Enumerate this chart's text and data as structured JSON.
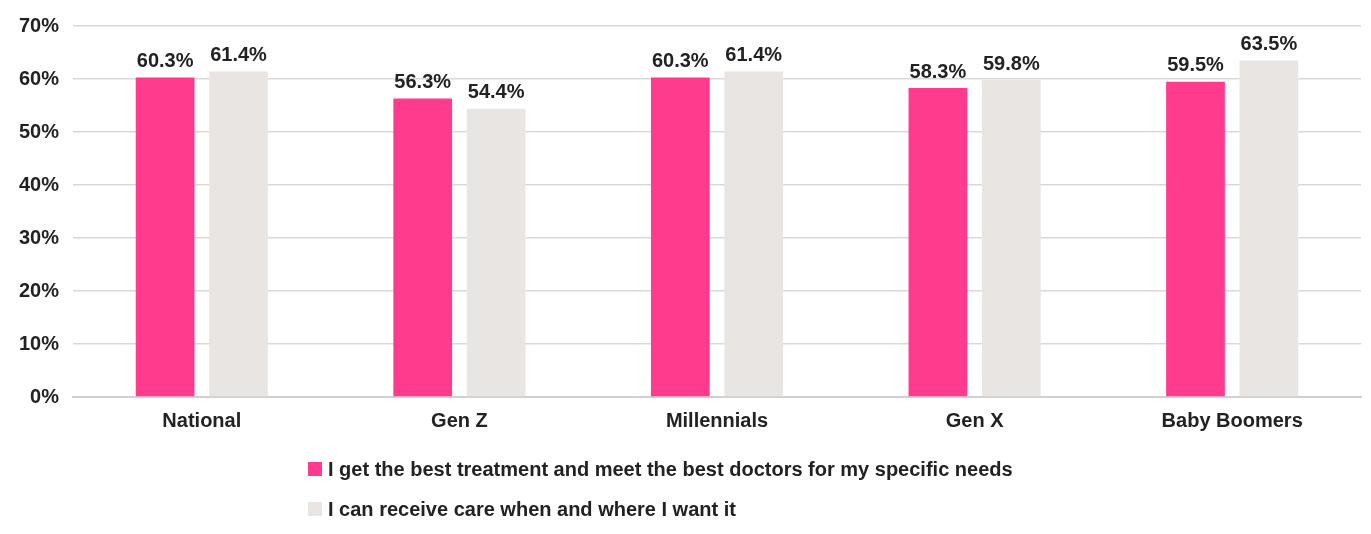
{
  "chart_data": {
    "type": "bar",
    "categories": [
      "National",
      "Gen Z",
      "Millennials",
      "Gen X",
      "Baby Boomers"
    ],
    "series": [
      {
        "name": "I get the best treatment and meet the best doctors for my specific needs",
        "color": "#ff3b8d",
        "values": [
          60.3,
          56.3,
          60.3,
          58.3,
          59.5
        ]
      },
      {
        "name": "I can receive care when and where I want it",
        "color": "#e9e5e2",
        "values": [
          61.4,
          54.4,
          61.4,
          59.8,
          63.5
        ]
      }
    ],
    "ylim": [
      0,
      70
    ],
    "yticks": [
      {
        "value": 0,
        "label": "0%"
      },
      {
        "value": 10,
        "label": "10%"
      },
      {
        "value": 20,
        "label": "20%"
      },
      {
        "value": 30,
        "label": "30%"
      },
      {
        "value": 40,
        "label": "40%"
      },
      {
        "value": 50,
        "label": "50%"
      },
      {
        "value": 60,
        "label": "60%"
      },
      {
        "value": 70,
        "label": "70%"
      }
    ],
    "value_labels": [
      [
        "60.3%",
        "56.3%",
        "60.3%",
        "58.3%",
        "59.5%"
      ],
      [
        "61.4%",
        "54.4%",
        "61.4%",
        "59.8%",
        "63.5%"
      ]
    ],
    "grid": "y",
    "legend": "bottom"
  }
}
